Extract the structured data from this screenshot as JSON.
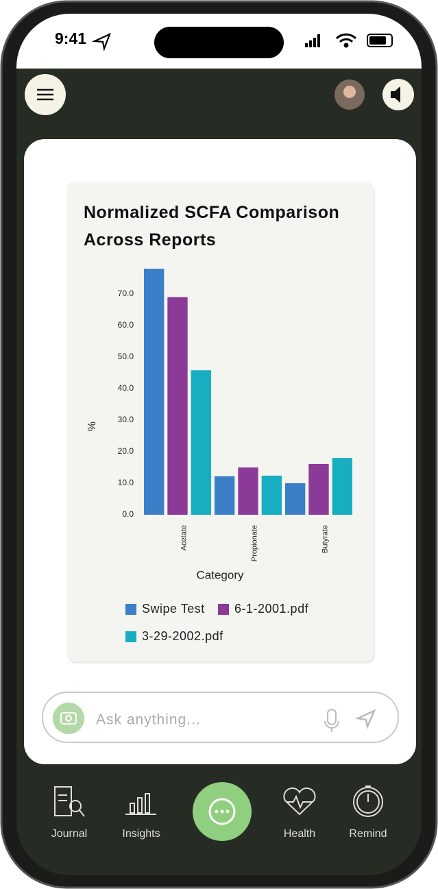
{
  "status_bar": {
    "time": "9:41"
  },
  "chart_data": {
    "type": "bar",
    "title": "Normalized SCFA Comparison Across Reports",
    "x_label": "Category",
    "y_label": "%",
    "categories": [
      "Acetate",
      "Propionate",
      "Butyrate"
    ],
    "series": [
      {
        "name": "Swipe Test",
        "color": "#3b7fc9",
        "values": [
          78,
          12.2,
          10
        ]
      },
      {
        "name": "6-1-2001.pdf",
        "color": "#8b3a98",
        "values": [
          69,
          15,
          16.1
        ]
      },
      {
        "name": "3-29-2002.pdf",
        "color": "#18aec2",
        "values": [
          45.8,
          12.4,
          18
        ]
      }
    ],
    "ylim": [
      0,
      78
    ],
    "yticks": [
      {
        "value": 0,
        "label": "0.0"
      },
      {
        "value": 10,
        "label": "10.0"
      },
      {
        "value": 20,
        "label": "20.0"
      },
      {
        "value": 30,
        "label": "30.0"
      },
      {
        "value": 40,
        "label": "40.0"
      },
      {
        "value": 50,
        "label": "50.0"
      },
      {
        "value": 60,
        "label": "60.0"
      },
      {
        "value": 70,
        "label": "70.0"
      }
    ],
    "grid": false
  },
  "chat_input": {
    "placeholder": "Ask anything..."
  },
  "nav": {
    "items": [
      "Journal",
      "Insights",
      "Health",
      "Remind"
    ]
  }
}
